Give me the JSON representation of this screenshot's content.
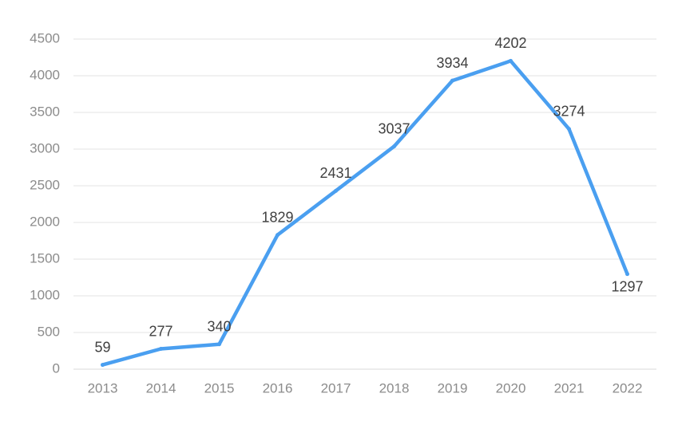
{
  "chart_data": {
    "type": "line",
    "title": "",
    "xlabel": "",
    "ylabel": "",
    "categories": [
      "2013",
      "2014",
      "2015",
      "2016",
      "2017",
      "2018",
      "2019",
      "2020",
      "2021",
      "2022"
    ],
    "series": [
      {
        "values": [
          59,
          277,
          340,
          1829,
          2431,
          3037,
          3934,
          4202,
          3274,
          1297
        ],
        "color": "#4a9ff0"
      }
    ],
    "ylim": [
      0,
      4500
    ],
    "yticks": [
      0,
      500,
      1000,
      1500,
      2000,
      2500,
      3000,
      3500,
      4000,
      4500
    ],
    "grid": true,
    "legend": "none",
    "data_labels": true
  }
}
